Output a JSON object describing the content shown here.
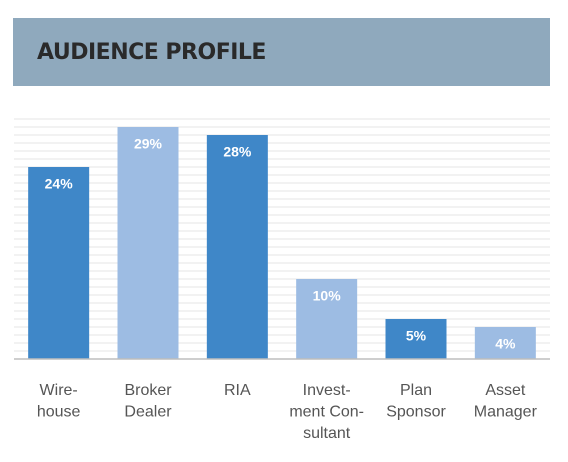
{
  "chart_data": {
    "type": "bar",
    "title": "AUDIENCE PROFILE",
    "categories": [
      [
        "Wire-",
        "house"
      ],
      [
        "Broker",
        "Dealer"
      ],
      [
        "RIA"
      ],
      [
        "Invest-",
        "ment Con-",
        "sultant"
      ],
      [
        "Plan",
        "Sponsor"
      ],
      [
        "Asset",
        "Manager"
      ]
    ],
    "values": [
      24,
      29,
      28,
      10,
      5,
      4
    ],
    "value_labels": [
      "24%",
      "29%",
      "28%",
      "10%",
      "5%",
      "4%"
    ],
    "colors": [
      "#3f87c8",
      "#9dbce3",
      "#3f87c8",
      "#9dbce3",
      "#3f87c8",
      "#9dbce3"
    ],
    "ylim": [
      0,
      30
    ],
    "yticks": [
      0,
      1,
      2,
      3,
      4,
      5,
      6,
      7,
      8,
      9,
      10,
      11,
      12,
      13,
      14,
      15,
      16,
      17,
      18,
      19,
      20,
      21,
      22,
      23,
      24,
      25,
      26,
      27,
      28,
      29,
      30
    ],
    "grid": true
  }
}
